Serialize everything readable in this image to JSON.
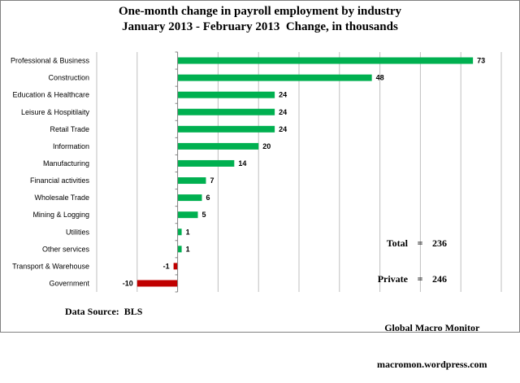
{
  "chart_data": {
    "type": "bar",
    "orientation": "horizontal",
    "title_line1": "One-month change in payroll employment by industry",
    "title_line2": "January 2013 - February 2013  Change, in thousands",
    "categories": [
      "Professional & Business",
      "Construction",
      "Education & Healthcare",
      "Leisure & Hospitilaity",
      "Retail Trade",
      "Information",
      "Manufacturing",
      "Financial activities",
      "Wholesale Trade",
      "Mining & Logging",
      "Utilities",
      "Other services",
      "Transport & Warehouse",
      "Government"
    ],
    "values": [
      73,
      48,
      24,
      24,
      24,
      20,
      14,
      7,
      6,
      5,
      1,
      1,
      -1,
      -10
    ],
    "xlim": [
      -20,
      80
    ],
    "grid": true,
    "colors": {
      "positive": "#00b050",
      "negative": "#c00000",
      "grid": "#bfbfbf"
    }
  },
  "totals": {
    "total_label": "Total",
    "total_eq": "=",
    "total_value": "236",
    "private_label": "Private",
    "private_eq": "=",
    "private_value": "246"
  },
  "source": "Data Source:  BLS",
  "credit_line1": "Global Macro Monitor",
  "credit_line2": "macromon.wordpress.com"
}
